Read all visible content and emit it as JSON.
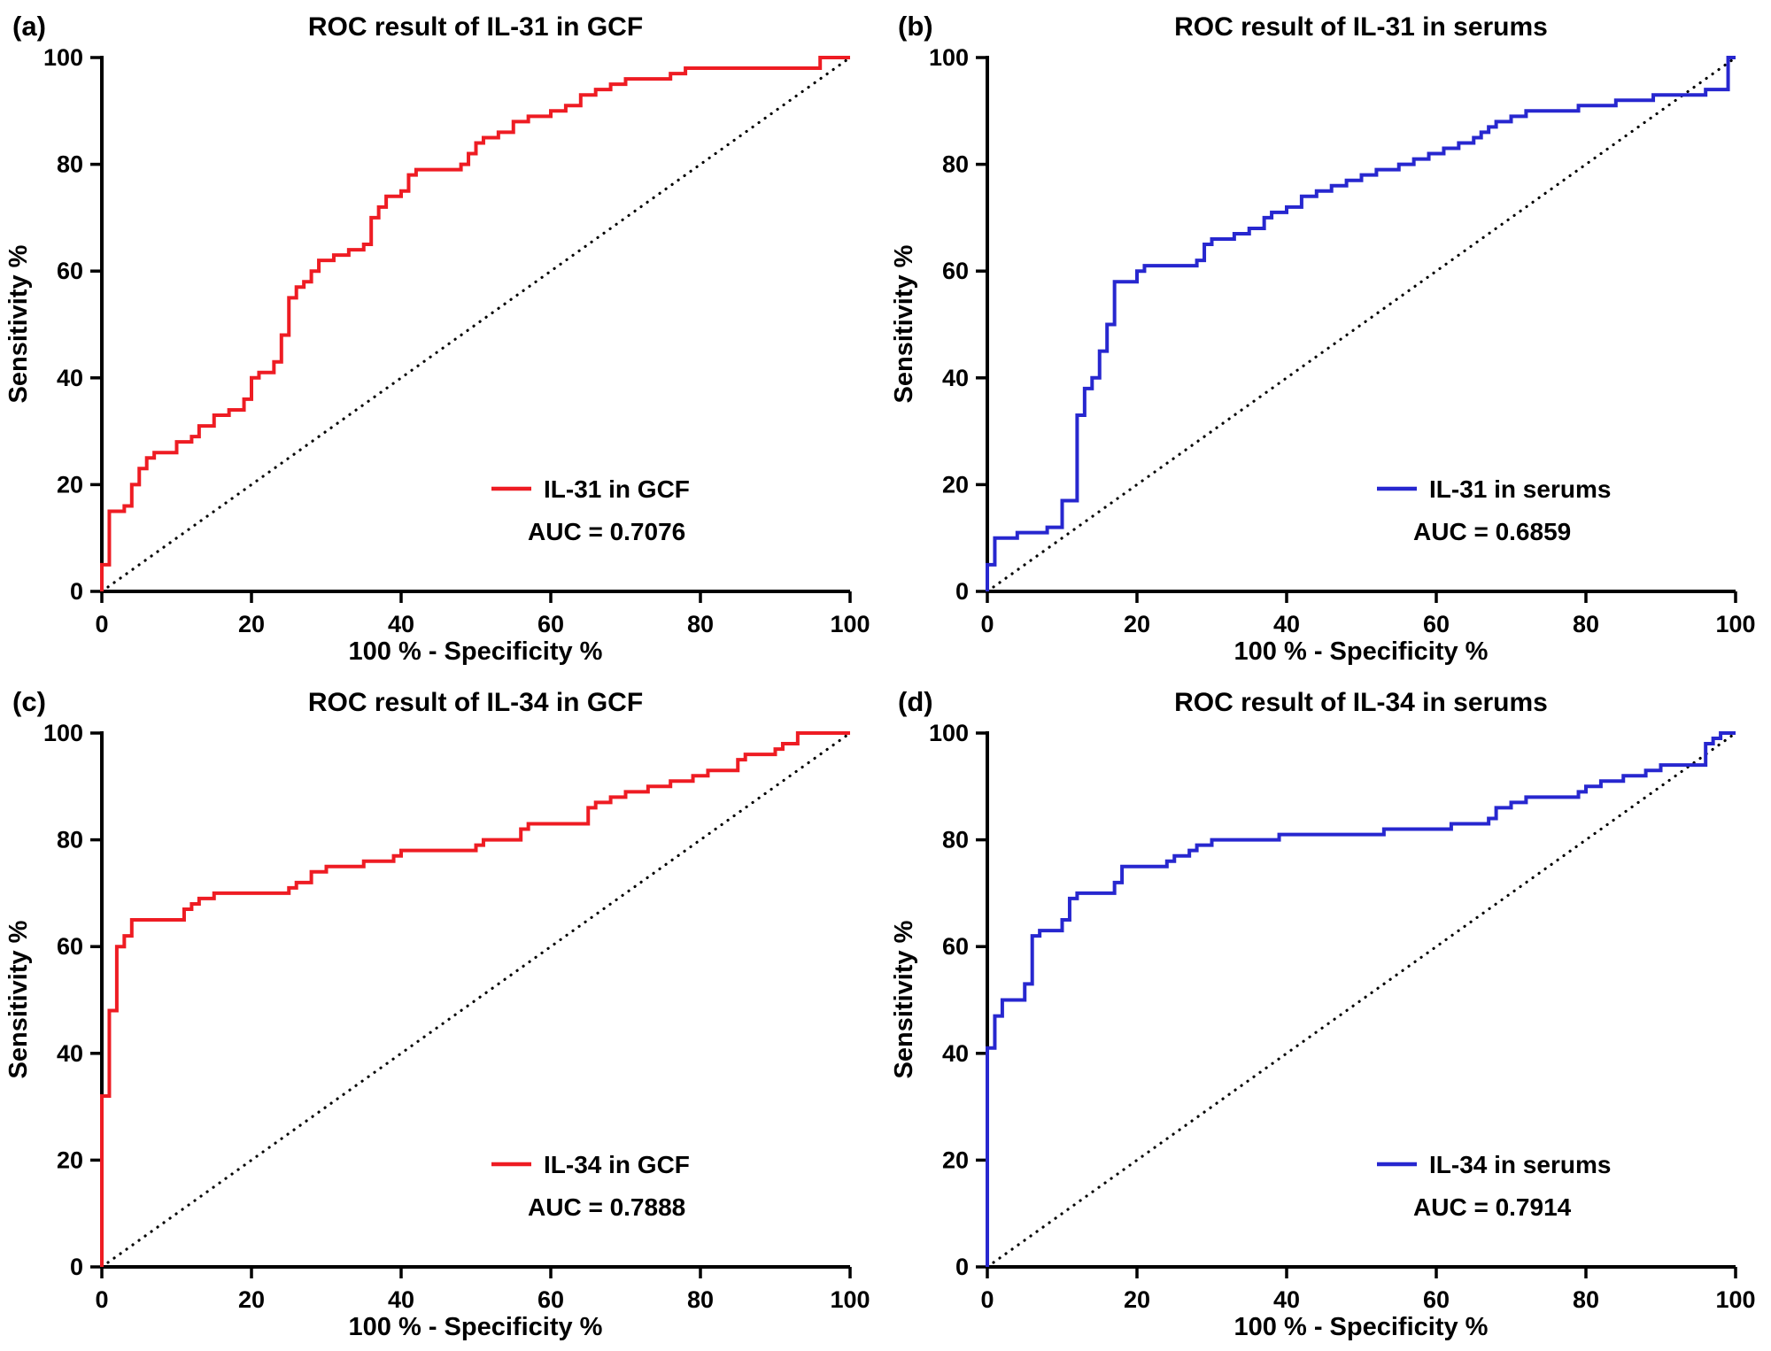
{
  "figure": {
    "background": "#ffffff",
    "red": "#ee1c23",
    "blue": "#2727cf"
  },
  "chart_data": [
    {
      "type": "line",
      "panel_label": "(a)",
      "title": "ROC result of IL-31 in GCF",
      "xlabel": "100 % - Specificity %",
      "ylabel": "Sensitivity %",
      "xlim": [
        0,
        100
      ],
      "ylim": [
        0,
        100
      ],
      "xticks": [
        0,
        20,
        40,
        60,
        80,
        100
      ],
      "yticks": [
        0,
        20,
        40,
        60,
        80,
        100
      ],
      "grid": false,
      "legend_position": "inside-bottom-right",
      "reference_line": "diagonal-dotted",
      "color": "#ee1c23",
      "legend_label": "IL-31 in GCF",
      "auc": 0.7076,
      "auc_text": "AUC = 0.7076",
      "series": [
        {
          "name": "IL-31 in GCF",
          "points": [
            [
              0,
              0
            ],
            [
              0,
              5
            ],
            [
              1,
              5
            ],
            [
              1,
              13
            ],
            [
              3,
              15
            ],
            [
              4,
              16
            ],
            [
              5,
              20
            ],
            [
              6,
              23
            ],
            [
              7,
              25
            ],
            [
              10,
              26
            ],
            [
              12,
              28
            ],
            [
              13,
              29
            ],
            [
              15,
              31
            ],
            [
              17,
              33
            ],
            [
              19,
              34
            ],
            [
              20,
              36
            ],
            [
              21,
              40
            ],
            [
              23,
              41
            ],
            [
              24,
              43
            ],
            [
              25,
              48
            ],
            [
              25,
              52
            ],
            [
              26,
              55
            ],
            [
              27,
              57
            ],
            [
              28,
              58
            ],
            [
              29,
              60
            ],
            [
              31,
              62
            ],
            [
              33,
              63
            ],
            [
              35,
              64
            ],
            [
              36,
              65
            ],
            [
              37,
              70
            ],
            [
              38,
              72
            ],
            [
              40,
              74
            ],
            [
              41,
              75
            ],
            [
              42,
              78
            ],
            [
              44,
              79
            ],
            [
              48,
              79
            ],
            [
              49,
              80
            ],
            [
              50,
              82
            ],
            [
              51,
              84
            ],
            [
              53,
              85
            ],
            [
              55,
              86
            ],
            [
              57,
              88
            ],
            [
              60,
              89
            ],
            [
              62,
              90
            ],
            [
              64,
              91
            ],
            [
              66,
              93
            ],
            [
              68,
              94
            ],
            [
              70,
              95
            ],
            [
              73,
              96
            ],
            [
              76,
              96
            ],
            [
              78,
              97
            ],
            [
              80,
              98
            ],
            [
              96,
              98
            ],
            [
              97,
              100
            ],
            [
              100,
              100
            ]
          ]
        }
      ]
    },
    {
      "type": "line",
      "panel_label": "(b)",
      "title": "ROC result of IL-31 in serums",
      "xlabel": "100 % - Specificity %",
      "ylabel": "Sensitivity %",
      "xlim": [
        0,
        100
      ],
      "ylim": [
        0,
        100
      ],
      "xticks": [
        0,
        20,
        40,
        60,
        80,
        100
      ],
      "yticks": [
        0,
        20,
        40,
        60,
        80,
        100
      ],
      "grid": false,
      "legend_position": "inside-bottom-right",
      "reference_line": "diagonal-dotted",
      "color": "#2727cf",
      "legend_label": "IL-31 in serums",
      "auc": 0.6859,
      "auc_text": "AUC = 0.6859",
      "series": [
        {
          "name": "IL-31 in serums",
          "points": [
            [
              0,
              0
            ],
            [
              0,
              5
            ],
            [
              1,
              5
            ],
            [
              1,
              9
            ],
            [
              2,
              10
            ],
            [
              4,
              10
            ],
            [
              5,
              11
            ],
            [
              8,
              11
            ],
            [
              9,
              12
            ],
            [
              10,
              12
            ],
            [
              11,
              17
            ],
            [
              12,
              17
            ],
            [
              12,
              30
            ],
            [
              13,
              33
            ],
            [
              14,
              38
            ],
            [
              15,
              40
            ],
            [
              16,
              45
            ],
            [
              17,
              50
            ],
            [
              17,
              57
            ],
            [
              20,
              58
            ],
            [
              21,
              60
            ],
            [
              22,
              61
            ],
            [
              28,
              61
            ],
            [
              29,
              62
            ],
            [
              30,
              65
            ],
            [
              33,
              66
            ],
            [
              35,
              67
            ],
            [
              37,
              68
            ],
            [
              38,
              70
            ],
            [
              40,
              71
            ],
            [
              42,
              72
            ],
            [
              44,
              74
            ],
            [
              46,
              75
            ],
            [
              48,
              76
            ],
            [
              50,
              77
            ],
            [
              52,
              78
            ],
            [
              55,
              79
            ],
            [
              57,
              80
            ],
            [
              59,
              81
            ],
            [
              61,
              82
            ],
            [
              63,
              83
            ],
            [
              65,
              84
            ],
            [
              66,
              85
            ],
            [
              67,
              86
            ],
            [
              68,
              87
            ],
            [
              70,
              88
            ],
            [
              72,
              89
            ],
            [
              74,
              90
            ],
            [
              79,
              90
            ],
            [
              80,
              91
            ],
            [
              84,
              91
            ],
            [
              85,
              92
            ],
            [
              89,
              92
            ],
            [
              90,
              93
            ],
            [
              96,
              93
            ],
            [
              97,
              94
            ],
            [
              99,
              94
            ],
            [
              100,
              100
            ]
          ]
        }
      ]
    },
    {
      "type": "line",
      "panel_label": "(c)",
      "title": "ROC result of IL-34 in GCF",
      "xlabel": "100 % - Specificity %",
      "ylabel": "Sensitivity %",
      "xlim": [
        0,
        100
      ],
      "ylim": [
        0,
        100
      ],
      "xticks": [
        0,
        20,
        40,
        60,
        80,
        100
      ],
      "yticks": [
        0,
        20,
        40,
        60,
        80,
        100
      ],
      "grid": false,
      "legend_position": "inside-bottom-right",
      "reference_line": "diagonal-dotted",
      "color": "#ee1c23",
      "legend_label": "IL-34 in GCF",
      "auc": 0.7888,
      "auc_text": "AUC = 0.7888",
      "series": [
        {
          "name": "IL-34 in GCF",
          "points": [
            [
              0,
              0
            ],
            [
              0,
              32
            ],
            [
              1,
              32
            ],
            [
              1,
              48
            ],
            [
              2,
              48
            ],
            [
              2,
              58
            ],
            [
              3,
              60
            ],
            [
              4,
              62
            ],
            [
              5,
              65
            ],
            [
              11,
              65
            ],
            [
              12,
              67
            ],
            [
              13,
              68
            ],
            [
              15,
              69
            ],
            [
              17,
              70
            ],
            [
              25,
              70
            ],
            [
              26,
              71
            ],
            [
              28,
              72
            ],
            [
              30,
              74
            ],
            [
              31,
              75
            ],
            [
              35,
              75
            ],
            [
              36,
              76
            ],
            [
              39,
              76
            ],
            [
              40,
              77
            ],
            [
              43,
              78
            ],
            [
              50,
              78
            ],
            [
              51,
              79
            ],
            [
              53,
              80
            ],
            [
              56,
              80
            ],
            [
              57,
              82
            ],
            [
              60,
              83
            ],
            [
              65,
              83
            ],
            [
              66,
              86
            ],
            [
              68,
              87
            ],
            [
              70,
              88
            ],
            [
              73,
              89
            ],
            [
              76,
              90
            ],
            [
              79,
              91
            ],
            [
              81,
              92
            ],
            [
              82,
              93
            ],
            [
              85,
              93
            ],
            [
              86,
              95
            ],
            [
              90,
              96
            ],
            [
              91,
              97
            ],
            [
              93,
              98
            ],
            [
              94,
              100
            ],
            [
              100,
              100
            ]
          ]
        }
      ]
    },
    {
      "type": "line",
      "panel_label": "(d)",
      "title": "ROC result of IL-34 in serums",
      "xlabel": "100 % - Specificity %",
      "ylabel": "Sensitivity %",
      "xlim": [
        0,
        100
      ],
      "ylim": [
        0,
        100
      ],
      "xticks": [
        0,
        20,
        40,
        60,
        80,
        100
      ],
      "yticks": [
        0,
        20,
        40,
        60,
        80,
        100
      ],
      "grid": false,
      "legend_position": "inside-bottom-right",
      "reference_line": "diagonal-dotted",
      "color": "#2727cf",
      "legend_label": "IL-34 in serums",
      "auc": 0.7914,
      "auc_text": "AUC = 0.7914",
      "series": [
        {
          "name": "IL-34 in serums",
          "points": [
            [
              0,
              0
            ],
            [
              0,
              41
            ],
            [
              1,
              41
            ],
            [
              1,
              47
            ],
            [
              2,
              47
            ],
            [
              2,
              50
            ],
            [
              5,
              50
            ],
            [
              5,
              52
            ],
            [
              6,
              53
            ],
            [
              7,
              62
            ],
            [
              8,
              63
            ],
            [
              10,
              63
            ],
            [
              11,
              65
            ],
            [
              12,
              69
            ],
            [
              13,
              70
            ],
            [
              17,
              70
            ],
            [
              18,
              72
            ],
            [
              20,
              75
            ],
            [
              24,
              75
            ],
            [
              25,
              76
            ],
            [
              27,
              77
            ],
            [
              28,
              78
            ],
            [
              30,
              79
            ],
            [
              32,
              80
            ],
            [
              39,
              80
            ],
            [
              40,
              81
            ],
            [
              53,
              81
            ],
            [
              54,
              82
            ],
            [
              62,
              82
            ],
            [
              63,
              83
            ],
            [
              67,
              83
            ],
            [
              68,
              84
            ],
            [
              70,
              86
            ],
            [
              72,
              87
            ],
            [
              74,
              88
            ],
            [
              79,
              88
            ],
            [
              80,
              89
            ],
            [
              82,
              90
            ],
            [
              85,
              91
            ],
            [
              88,
              92
            ],
            [
              90,
              93
            ],
            [
              92,
              94
            ],
            [
              96,
              94
            ],
            [
              97,
              98
            ],
            [
              98,
              99
            ],
            [
              100,
              100
            ]
          ]
        }
      ]
    }
  ]
}
